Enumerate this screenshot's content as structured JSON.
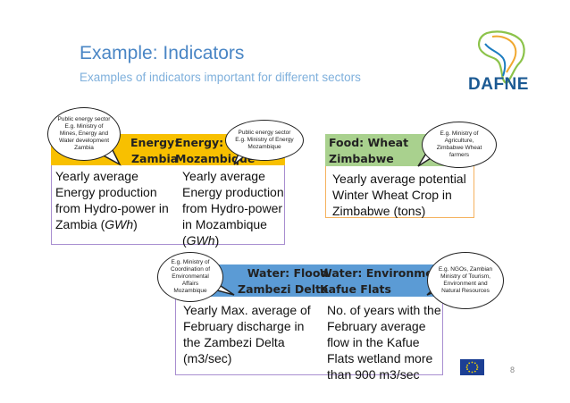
{
  "title": "Example: Indicators",
  "subtitle": "Examples of indicators important for different sectors",
  "logo": {
    "text": "DAFNE",
    "colors": [
      "#8cc34a",
      "#f0a830",
      "#1c7cc0"
    ]
  },
  "energy": {
    "header_zambia": "Energy:\nZambia",
    "header_mozambique": "Energy:\nMozambique",
    "zambia_text": "Yearly average Energy production from Hydro-power in Zambia (GWh)",
    "mozambique_text": "Yearly average Energy production from Hydro-power in Mozambique (GWh)",
    "header_color": "#f8c000",
    "border_color": "#a88ed0"
  },
  "food": {
    "header": "Food: Wheat\nZimbabwe",
    "text": "Yearly average potential Winter Wheat Crop in Zimbabwe (tons)",
    "header_color": "#a9d18e",
    "border_color": "#f5b25f"
  },
  "water": {
    "header_flood": "Water: Flood\nZambezi Delta",
    "header_env": "Water: Environment\nKafue Flats",
    "flood_text": "Yearly Max. average of February discharge in the Zambezi Delta (m3/sec)",
    "env_text": "No. of years with the February average flow in the Kafue Flats wetland more than 900 m3/sec",
    "header_color": "#5b9bd5",
    "border_color": "#a88ed0"
  },
  "bubbles": {
    "zambia_public": "Public energy sector E.g. Ministry of Mines, Energy and Water development Zambia",
    "mozambique_public": "Public energy sector E.g. Ministry of Energy Mozambique",
    "zimbabwe": "E.g. Ministry of Agriculture, Zimbabwe Wheat farmers",
    "mozambique_coord": "E.g. Ministry of Coordination of Environmental Affairs Mozambique",
    "zambia_ngos": "E.g. NGOs, Zambian Ministry of Tourism, Environment and Natural Resources"
  },
  "page_number": "8",
  "eu_flag": "eu-flag-icon"
}
